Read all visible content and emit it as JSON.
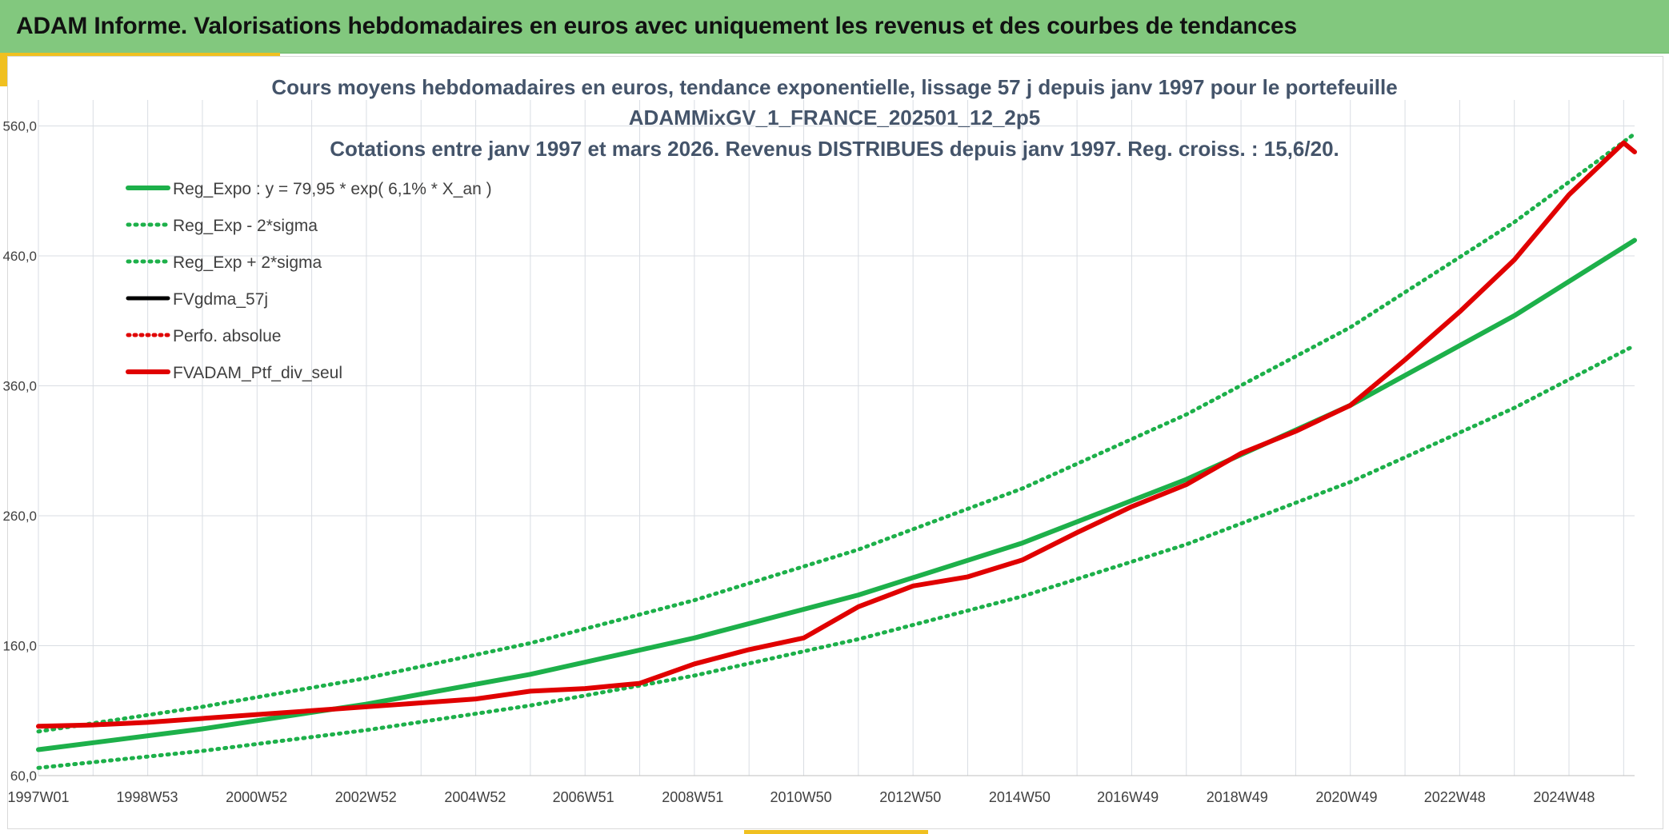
{
  "header": {
    "title": "ADAM Informe. Valorisations hebdomadaires en euros avec uniquement les revenus et des courbes de tendances"
  },
  "colors": {
    "header_band": "#82c87e",
    "accent": "#f0c020",
    "trend": "#1db04a",
    "smooth": "#000000",
    "portfolio": "#e00000",
    "grid": "#d9dde3",
    "title_text": "#44546a"
  },
  "chart_data": {
    "type": "line",
    "title_lines": [
      "Cours moyens hebdomadaires en euros, tendance exponentielle, lissage 57 j depuis janv 1997 pour le portefeuille",
      "ADAMMixGV_1_FRANCE_202501_12_2p5",
      "Cotations entre janv 1997 et mars 2026. Revenus DISTRIBUES depuis janv 1997. Reg. croiss. : 15,6/20."
    ],
    "xlabel": "",
    "ylabel": "",
    "x_unit": "year",
    "xlim": [
      1997.0,
      2026.2
    ],
    "ylim": [
      60,
      580
    ],
    "x_tick_labels": [
      {
        "x": 1997.0,
        "label": "1997W01"
      },
      {
        "x": 1998.99,
        "label": "1998W53"
      },
      {
        "x": 2000.99,
        "label": "2000W52"
      },
      {
        "x": 2002.99,
        "label": "2002W52"
      },
      {
        "x": 2004.99,
        "label": "2004W52"
      },
      {
        "x": 2006.97,
        "label": "2006W51"
      },
      {
        "x": 2008.97,
        "label": "2008W51"
      },
      {
        "x": 2010.95,
        "label": "2010W50"
      },
      {
        "x": 2012.95,
        "label": "2012W50"
      },
      {
        "x": 2014.95,
        "label": "2014W50"
      },
      {
        "x": 2016.93,
        "label": "2016W49"
      },
      {
        "x": 2018.93,
        "label": "2018W49"
      },
      {
        "x": 2020.93,
        "label": "2020W49"
      },
      {
        "x": 2022.91,
        "label": "2022W48"
      },
      {
        "x": 2024.91,
        "label": "2024W48"
      }
    ],
    "y_ticks": [
      {
        "value": 60,
        "label": "60,0"
      },
      {
        "value": 160,
        "label": "160,0"
      },
      {
        "value": 260,
        "label": "260,0"
      },
      {
        "value": 360,
        "label": "360,0"
      },
      {
        "value": 460,
        "label": "460,0"
      },
      {
        "value": 560,
        "label": "560,0"
      }
    ],
    "grid": true,
    "legend_position": "top-left",
    "series": [
      {
        "name": "Reg_Expo : y = 79,95 * exp( 6,1% *  X_an )",
        "color": "#1db04a",
        "style": "solid",
        "x": [
          1997.0,
          2000.0,
          2003.0,
          2006.0,
          2009.0,
          2012.0,
          2015.0,
          2018.0,
          2021.0,
          2024.0,
          2026.2
        ],
        "y": [
          80,
          96,
          115,
          138,
          166,
          199,
          239,
          288,
          345,
          414,
          472
        ]
      },
      {
        "name": "Reg_Exp - 2*sigma",
        "color": "#1db04a",
        "style": "dotted",
        "x": [
          1997.0,
          2000.0,
          2003.0,
          2006.0,
          2009.0,
          2012.0,
          2015.0,
          2018.0,
          2021.0,
          2024.0,
          2026.2
        ],
        "y": [
          66,
          79,
          95,
          114,
          137,
          165,
          198,
          238,
          286,
          343,
          391
        ]
      },
      {
        "name": "Reg_Exp + 2*sigma",
        "color": "#1db04a",
        "style": "dotted",
        "x": [
          1997.0,
          2000.0,
          2003.0,
          2006.0,
          2009.0,
          2012.0,
          2015.0,
          2018.0,
          2021.0,
          2024.0,
          2026.2
        ],
        "y": [
          94,
          113,
          135,
          162,
          195,
          234,
          281,
          338,
          405,
          486,
          554
        ]
      },
      {
        "name": "FVgdma_57j",
        "color": "#000000",
        "style": "solid",
        "x": [
          1997.0,
          1998.0,
          1999.0,
          2000.0,
          2001.0,
          2002.0,
          2003.0,
          2004.0,
          2005.0,
          2006.0,
          2007.0,
          2008.0,
          2009.0,
          2010.0,
          2011.0,
          2012.0,
          2013.0,
          2014.0,
          2015.0,
          2016.0,
          2017.0,
          2018.0,
          2019.0,
          2020.0,
          2021.0,
          2022.0,
          2023.0,
          2024.0,
          2025.0,
          2026.0,
          2026.2
        ],
        "y": [
          98,
          99,
          101,
          104,
          107,
          110,
          113,
          116,
          119,
          125,
          127,
          131,
          146,
          157,
          166,
          190,
          206,
          213,
          226,
          247,
          267,
          284,
          308,
          325,
          345,
          380,
          417,
          457,
          507,
          547,
          540
        ]
      },
      {
        "name": "Perfo. absolue",
        "color": "#e00000",
        "style": "dotted",
        "x": [
          1997.0,
          1998.0,
          1999.0,
          2000.0,
          2001.0,
          2002.0,
          2003.0,
          2004.0,
          2005.0,
          2006.0,
          2007.0,
          2008.0,
          2009.0,
          2010.0,
          2011.0,
          2012.0,
          2013.0,
          2014.0,
          2015.0,
          2016.0,
          2017.0,
          2018.0,
          2019.0,
          2020.0,
          2021.0,
          2022.0,
          2023.0,
          2024.0,
          2025.0,
          2026.0,
          2026.2
        ],
        "y": [
          98,
          99,
          101,
          104,
          107,
          110,
          113,
          116,
          119,
          125,
          127,
          131,
          146,
          157,
          166,
          190,
          206,
          213,
          226,
          247,
          267,
          284,
          308,
          325,
          345,
          380,
          417,
          457,
          507,
          547,
          540
        ]
      },
      {
        "name": "FVADAM_Ptf_div_seul",
        "color": "#e00000",
        "style": "solid",
        "x": [
          1997.0,
          1998.0,
          1999.0,
          2000.0,
          2001.0,
          2002.0,
          2003.0,
          2004.0,
          2005.0,
          2006.0,
          2007.0,
          2008.0,
          2009.0,
          2010.0,
          2011.0,
          2012.0,
          2013.0,
          2014.0,
          2015.0,
          2016.0,
          2017.0,
          2018.0,
          2019.0,
          2020.0,
          2021.0,
          2022.0,
          2023.0,
          2024.0,
          2025.0,
          2026.0,
          2026.2
        ],
        "y": [
          98,
          99,
          101,
          104,
          107,
          110,
          113,
          116,
          119,
          125,
          127,
          131,
          146,
          157,
          166,
          190,
          206,
          213,
          226,
          247,
          267,
          284,
          308,
          325,
          345,
          380,
          417,
          457,
          507,
          547,
          540
        ]
      }
    ]
  }
}
